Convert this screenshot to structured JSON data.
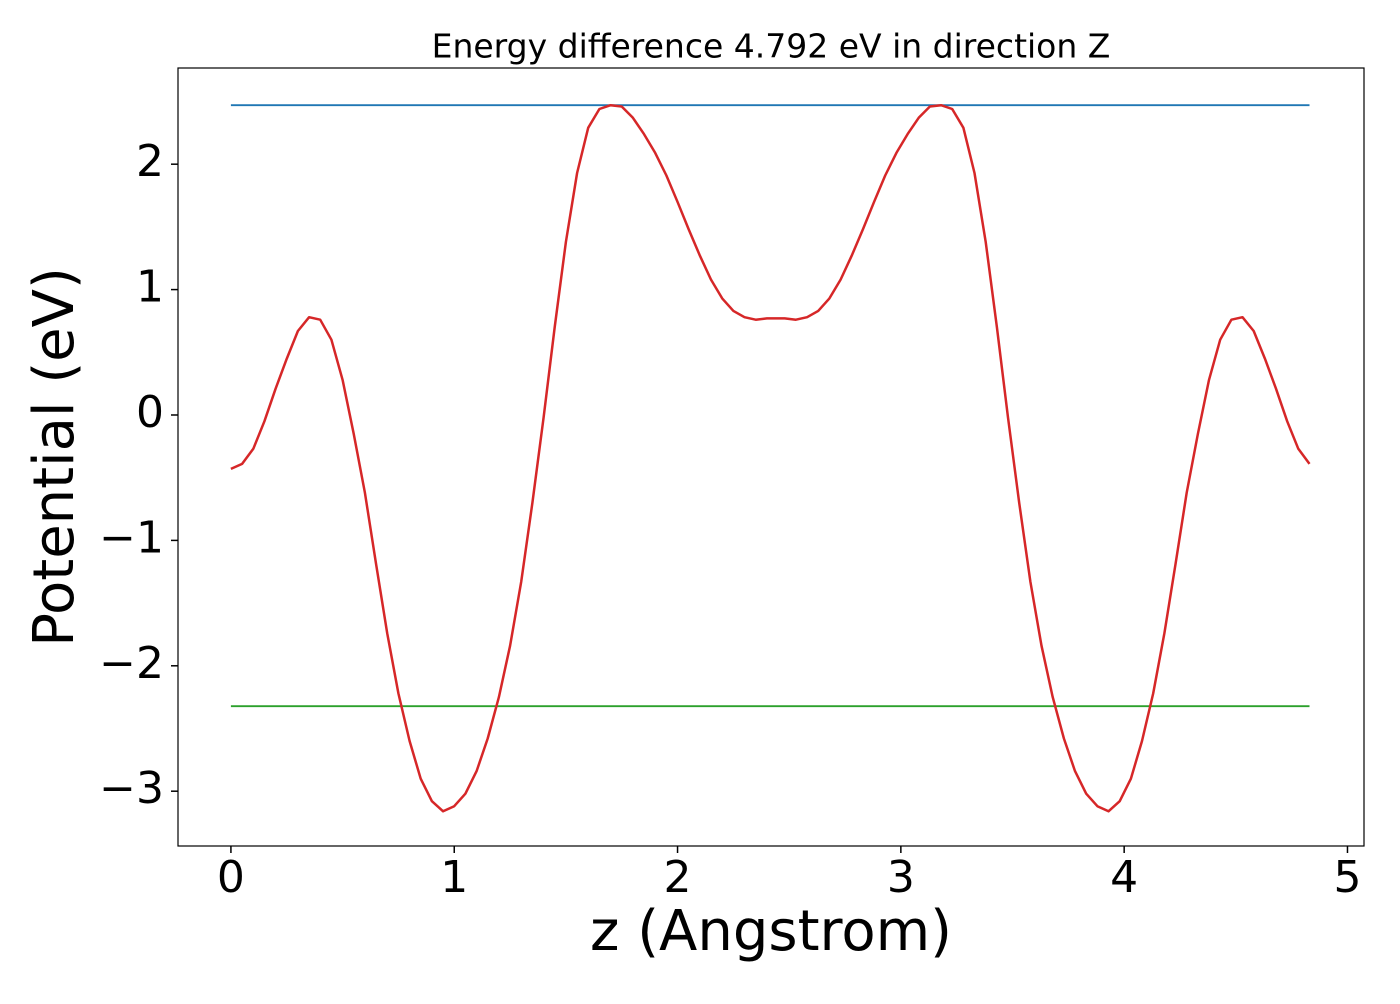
{
  "chart_data": {
    "type": "line",
    "title": "Energy difference 4.792 eV in direction Z",
    "xlabel": "z (Angstrom)",
    "ylabel": "Potential (eV)",
    "xlim": [
      -0.237,
      5.074
    ],
    "ylim": [
      -3.437,
      2.767
    ],
    "xticks": [
      0,
      1,
      2,
      3,
      4,
      5
    ],
    "yticks": [
      {
        "value": -3,
        "label": "−3"
      },
      {
        "value": -2,
        "label": "−2"
      },
      {
        "value": -1,
        "label": "−1"
      },
      0,
      1,
      2
    ],
    "series": [
      {
        "color": "#d62728",
        "x": [
          0,
          0.05,
          0.1,
          0.15,
          0.2,
          0.25,
          0.3,
          0.35,
          0.4,
          0.45,
          0.5,
          0.55,
          0.6,
          0.65,
          0.7,
          0.75,
          0.8,
          0.85,
          0.9,
          0.95,
          1.0,
          1.05,
          1.1,
          1.15,
          1.2,
          1.25,
          1.3,
          1.35,
          1.4,
          1.45,
          1.5,
          1.55,
          1.6,
          1.65,
          1.7,
          1.75,
          1.8,
          1.85,
          1.9,
          1.95,
          2.0,
          2.05,
          2.1,
          2.15,
          2.2,
          2.25,
          2.3,
          2.35,
          2.4,
          2.48,
          2.53,
          2.58,
          2.63,
          2.68,
          2.73,
          2.78,
          2.83,
          2.88,
          2.93,
          2.98,
          3.03,
          3.08,
          3.13,
          3.18,
          3.23,
          3.28,
          3.33,
          3.38,
          3.43,
          3.48,
          3.53,
          3.58,
          3.63,
          3.68,
          3.73,
          3.78,
          3.83,
          3.88,
          3.93,
          3.98,
          4.03,
          4.08,
          4.13,
          4.18,
          4.23,
          4.28,
          4.33,
          4.38,
          4.43,
          4.48,
          4.53,
          4.58,
          4.63,
          4.68,
          4.73,
          4.78,
          4.83
        ],
        "values": [
          -0.43,
          -0.39,
          -0.27,
          -0.05,
          0.21,
          0.45,
          0.67,
          0.78,
          0.76,
          0.6,
          0.28,
          -0.15,
          -0.62,
          -1.19,
          -1.74,
          -2.22,
          -2.6,
          -2.9,
          -3.08,
          -3.16,
          -3.12,
          -3.02,
          -2.84,
          -2.58,
          -2.25,
          -1.84,
          -1.33,
          -0.7,
          -0.02,
          0.7,
          1.38,
          1.93,
          2.29,
          2.44,
          2.47,
          2.46,
          2.37,
          2.24,
          2.09,
          1.91,
          1.7,
          1.48,
          1.27,
          1.08,
          0.93,
          0.83,
          0.78,
          0.76,
          0.77,
          0.77,
          0.76,
          0.78,
          0.83,
          0.93,
          1.08,
          1.27,
          1.48,
          1.7,
          1.91,
          2.09,
          2.24,
          2.37,
          2.46,
          2.47,
          2.44,
          2.29,
          1.93,
          1.38,
          0.7,
          -0.02,
          -0.7,
          -1.33,
          -1.84,
          -2.25,
          -2.58,
          -2.84,
          -3.02,
          -3.12,
          -3.16,
          -3.08,
          -2.9,
          -2.6,
          -2.22,
          -1.74,
          -1.19,
          -0.62,
          -0.15,
          0.28,
          0.6,
          0.76,
          0.78,
          0.67,
          0.45,
          0.21,
          -0.05,
          -0.27,
          -0.39
        ]
      },
      {
        "color": "#1f77b4",
        "x": [
          0,
          4.83
        ],
        "values": [
          2.47,
          2.47
        ]
      },
      {
        "color": "#2ca02c",
        "x": [
          0,
          4.83
        ],
        "values": [
          -2.322,
          -2.322
        ]
      }
    ]
  }
}
